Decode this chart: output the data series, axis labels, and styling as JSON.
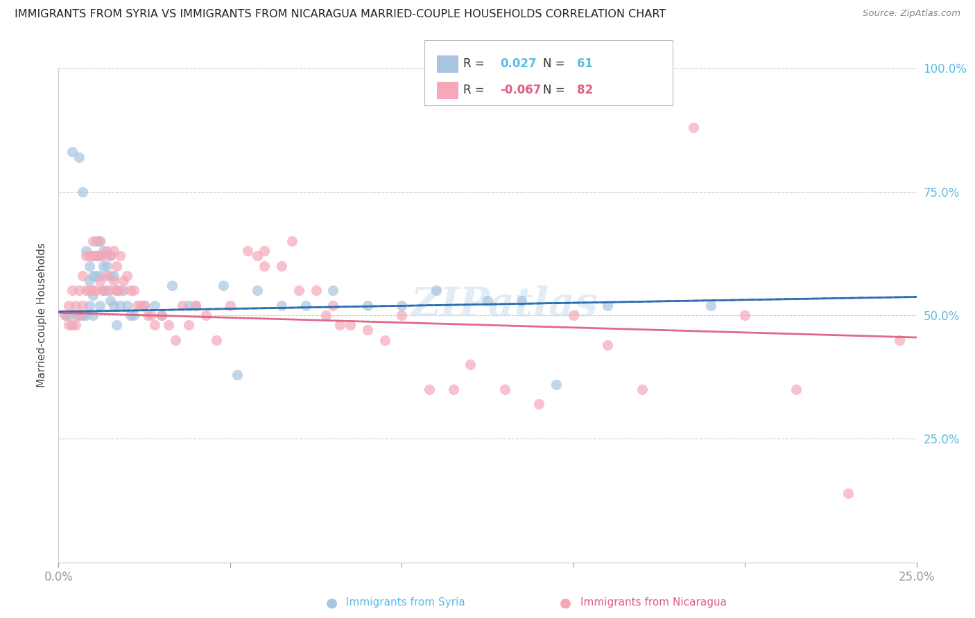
{
  "title": "IMMIGRANTS FROM SYRIA VS IMMIGRANTS FROM NICARAGUA MARRIED-COUPLE HOUSEHOLDS CORRELATION CHART",
  "source": "Source: ZipAtlas.com",
  "ylabel": "Married-couple Households",
  "xmin": 0.0,
  "xmax": 0.25,
  "ymin": 0.0,
  "ymax": 1.0,
  "syria_color": "#a8c4e0",
  "nicaragua_color": "#f4a8b8",
  "syria_line_color": "#2a6db5",
  "nicaragua_line_color": "#e06080",
  "tick_color": "#5bbce4",
  "syria_R": "0.027",
  "syria_N": "61",
  "nicaragua_R": "-0.067",
  "nicaragua_N": "82",
  "watermark": "ZIPatlas",
  "syria_trend": [
    0.507,
    0.537
  ],
  "nicaragua_trend": [
    0.505,
    0.455
  ],
  "syria_x": [
    0.002,
    0.003,
    0.004,
    0.005,
    0.006,
    0.006,
    0.007,
    0.007,
    0.008,
    0.008,
    0.009,
    0.009,
    0.009,
    0.01,
    0.01,
    0.01,
    0.01,
    0.011,
    0.011,
    0.011,
    0.012,
    0.012,
    0.012,
    0.012,
    0.013,
    0.013,
    0.013,
    0.014,
    0.014,
    0.015,
    0.015,
    0.015,
    0.016,
    0.016,
    0.017,
    0.017,
    0.018,
    0.019,
    0.02,
    0.021,
    0.022,
    0.025,
    0.028,
    0.03,
    0.033,
    0.038,
    0.04,
    0.048,
    0.052,
    0.058,
    0.065,
    0.072,
    0.08,
    0.09,
    0.1,
    0.11,
    0.125,
    0.135,
    0.145,
    0.16,
    0.19
  ],
  "syria_y": [
    0.5,
    0.5,
    0.83,
    0.5,
    0.82,
    0.5,
    0.75,
    0.5,
    0.63,
    0.5,
    0.6,
    0.57,
    0.52,
    0.62,
    0.58,
    0.54,
    0.5,
    0.65,
    0.62,
    0.58,
    0.65,
    0.62,
    0.58,
    0.52,
    0.63,
    0.6,
    0.55,
    0.6,
    0.55,
    0.62,
    0.58,
    0.53,
    0.58,
    0.52,
    0.55,
    0.48,
    0.52,
    0.55,
    0.52,
    0.5,
    0.5,
    0.52,
    0.52,
    0.5,
    0.56,
    0.52,
    0.52,
    0.56,
    0.38,
    0.55,
    0.52,
    0.52,
    0.55,
    0.52,
    0.52,
    0.55,
    0.53,
    0.53,
    0.36,
    0.52,
    0.52
  ],
  "nicaragua_x": [
    0.002,
    0.003,
    0.003,
    0.004,
    0.004,
    0.005,
    0.005,
    0.006,
    0.006,
    0.007,
    0.007,
    0.008,
    0.008,
    0.009,
    0.009,
    0.01,
    0.01,
    0.01,
    0.011,
    0.011,
    0.012,
    0.012,
    0.012,
    0.013,
    0.013,
    0.014,
    0.014,
    0.015,
    0.015,
    0.016,
    0.016,
    0.017,
    0.017,
    0.018,
    0.018,
    0.019,
    0.02,
    0.021,
    0.022,
    0.023,
    0.024,
    0.025,
    0.026,
    0.027,
    0.028,
    0.03,
    0.032,
    0.034,
    0.036,
    0.038,
    0.04,
    0.043,
    0.046,
    0.05,
    0.055,
    0.058,
    0.06,
    0.06,
    0.065,
    0.068,
    0.07,
    0.075,
    0.078,
    0.08,
    0.082,
    0.085,
    0.09,
    0.095,
    0.1,
    0.108,
    0.115,
    0.12,
    0.13,
    0.14,
    0.15,
    0.16,
    0.17,
    0.185,
    0.2,
    0.215,
    0.23,
    0.245
  ],
  "nicaragua_y": [
    0.5,
    0.52,
    0.48,
    0.55,
    0.48,
    0.52,
    0.48,
    0.55,
    0.5,
    0.58,
    0.52,
    0.62,
    0.55,
    0.62,
    0.55,
    0.65,
    0.62,
    0.55,
    0.62,
    0.55,
    0.65,
    0.62,
    0.57,
    0.62,
    0.55,
    0.63,
    0.58,
    0.62,
    0.55,
    0.63,
    0.57,
    0.6,
    0.55,
    0.62,
    0.55,
    0.57,
    0.58,
    0.55,
    0.55,
    0.52,
    0.52,
    0.52,
    0.5,
    0.5,
    0.48,
    0.5,
    0.48,
    0.45,
    0.52,
    0.48,
    0.52,
    0.5,
    0.45,
    0.52,
    0.63,
    0.62,
    0.63,
    0.6,
    0.6,
    0.65,
    0.55,
    0.55,
    0.5,
    0.52,
    0.48,
    0.48,
    0.47,
    0.45,
    0.5,
    0.35,
    0.35,
    0.4,
    0.35,
    0.32,
    0.5,
    0.44,
    0.35,
    0.88,
    0.5,
    0.35,
    0.14,
    0.45
  ]
}
